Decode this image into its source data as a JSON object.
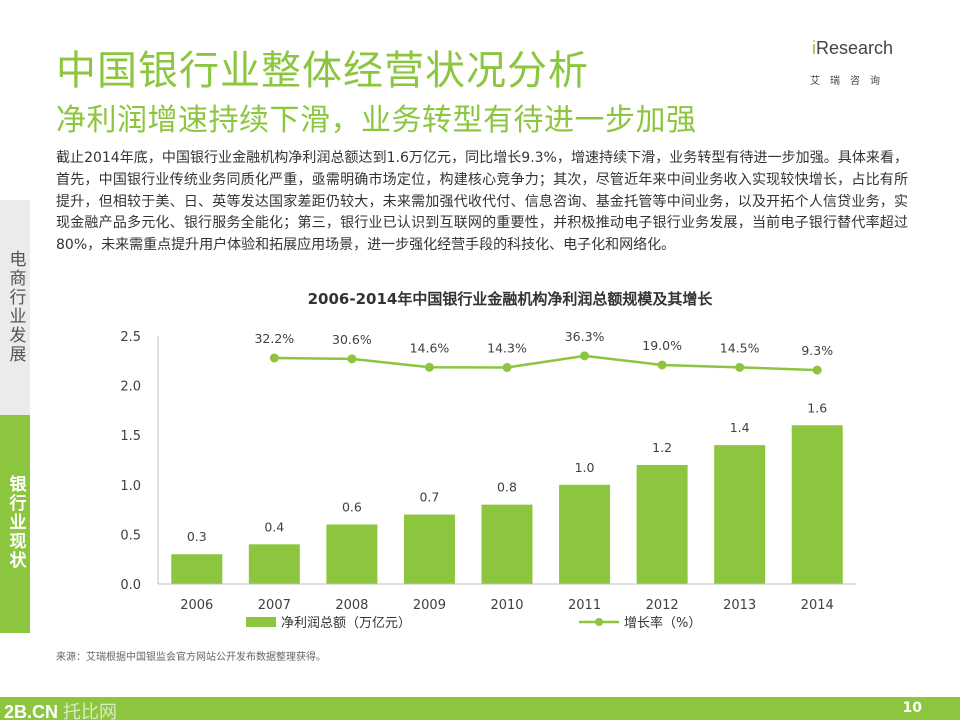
{
  "header": {
    "title": "中国银行业整体经营状况分析",
    "subtitle": "净利润增速持续下滑，业务转型有待进一步加强"
  },
  "logo": {
    "brand_i": "i",
    "brand_rest": "Research",
    "brand_sub": "艾瑞咨询"
  },
  "body": {
    "paragraph": "截止2014年底，中国银行业金融机构净利润总额达到1.6万亿元，同比增长9.3%，增速持续下滑，业务转型有待进一步加强。具体来看，首先，中国银行业传统业务同质化严重，亟需明确市场定位，构建核心竞争力；其次，尽管近年来中间业务收入实现较快增长，占比有所提升，但相较于美、日、英等发达国家差距仍较大，未来需加强代收代付、信息咨询、基金托管等中间业务，以及开拓个人信贷业务，实现金融产品多元化、银行服务全能化；第三，银行业已认识到互联网的重要性，并积极推动电子银行业务发展，当前电子银行替代率超过80%，未来需重点提升用户体验和拓展应用场景，进一步强化经营手段的科技化、电子化和网络化。"
  },
  "sidebar": {
    "items": [
      {
        "label": "电商行业发展",
        "active": false
      },
      {
        "label": "银行业现状",
        "active": true
      }
    ]
  },
  "chart_data": {
    "type": "bar",
    "title": "2006-2014年中国银行业金融机构净利润总额规模及其增长",
    "categories": [
      "2006",
      "2007",
      "2008",
      "2009",
      "2010",
      "2011",
      "2012",
      "2013",
      "2014"
    ],
    "yticks": [
      "0.0",
      "0.5",
      "1.0",
      "1.5",
      "2.0",
      "2.5"
    ],
    "ylim": [
      0,
      2.5
    ],
    "grid": false,
    "legend_position": "bottom",
    "series": [
      {
        "name": "净利润总额（万亿元）",
        "type": "bar",
        "values": [
          0.3,
          0.4,
          0.6,
          0.7,
          0.8,
          1.0,
          1.2,
          1.4,
          1.6
        ],
        "labels": [
          "0.3",
          "0.4",
          "0.6",
          "0.7",
          "0.8",
          "1.0",
          "1.2",
          "1.4",
          "1.6"
        ],
        "color": "#8cc63e"
      },
      {
        "name": "增长率（%）",
        "type": "line",
        "values": [
          null,
          32.2,
          30.6,
          14.6,
          14.3,
          36.3,
          19.0,
          14.5,
          9.3
        ],
        "labels": [
          "",
          "32.2%",
          "30.6%",
          "14.6%",
          "14.3%",
          "36.3%",
          "19.0%",
          "14.5%",
          "9.3%"
        ],
        "color": "#8cc63e"
      }
    ]
  },
  "source": {
    "text": "来源：艾瑞根据中国银监会官方网站公开发布数据整理获得。"
  },
  "footer": {
    "logo_main": "2B.CN",
    "logo_sub": "托比网",
    "page_number": "10"
  },
  "colors": {
    "accent": "#8cc63e",
    "sidebar_inactive": "#ebebeb"
  }
}
